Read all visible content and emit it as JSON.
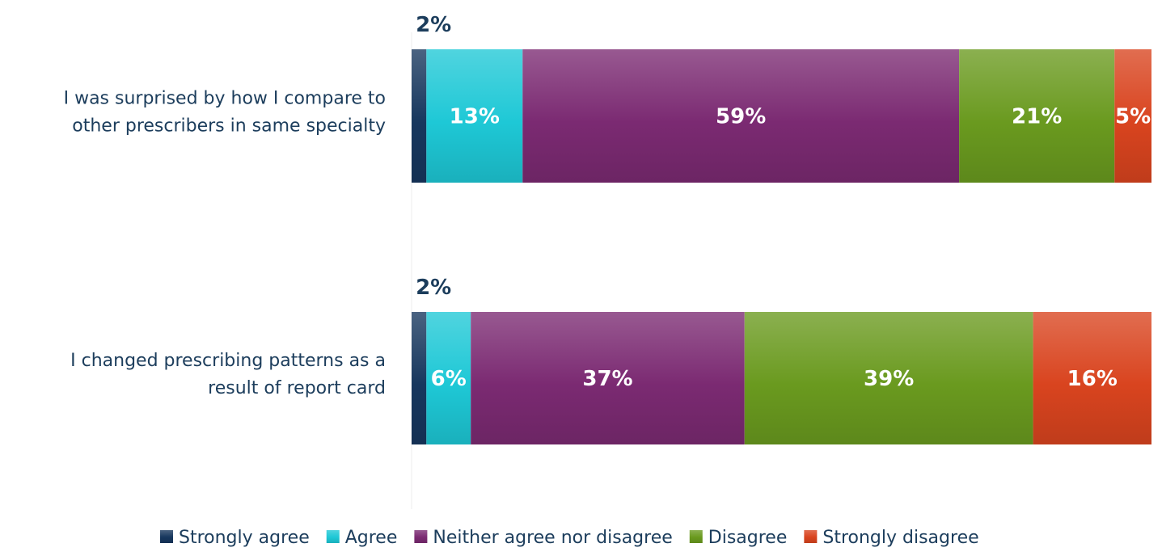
{
  "chart_data": {
    "type": "bar",
    "orientation": "horizontal",
    "stacked": true,
    "categories": [
      "I was surprised by how I compare to other prescribers in same specialty",
      "I changed prescribing patterns as a result of report card"
    ],
    "category_lines": [
      [
        "I was surprised by how I compare to",
        "other prescribers in same specialty"
      ],
      [
        "I changed prescribing patterns as a",
        "result of report card"
      ]
    ],
    "xlim": [
      0,
      100
    ],
    "grid": false,
    "legend_position": "bottom",
    "series": [
      {
        "name": "Strongly agree",
        "color": "#17375e",
        "values": [
          2,
          2
        ],
        "labels": [
          "2%",
          "2%"
        ]
      },
      {
        "name": "Agree",
        "color": "#1ec8d6",
        "values": [
          13,
          6
        ],
        "labels": [
          "13%",
          "6%"
        ]
      },
      {
        "name": "Neither agree nor disagree",
        "color": "#7b2a72",
        "values": [
          59,
          37
        ],
        "labels": [
          "59%",
          "37%"
        ]
      },
      {
        "name": "Disagree",
        "color": "#6a9a1f",
        "values": [
          21,
          39
        ],
        "labels": [
          "21%",
          "39%"
        ]
      },
      {
        "name": "Strongly disagree",
        "color": "#d9441f",
        "values": [
          5,
          16
        ],
        "labels": [
          "5%",
          "16%"
        ]
      }
    ]
  }
}
